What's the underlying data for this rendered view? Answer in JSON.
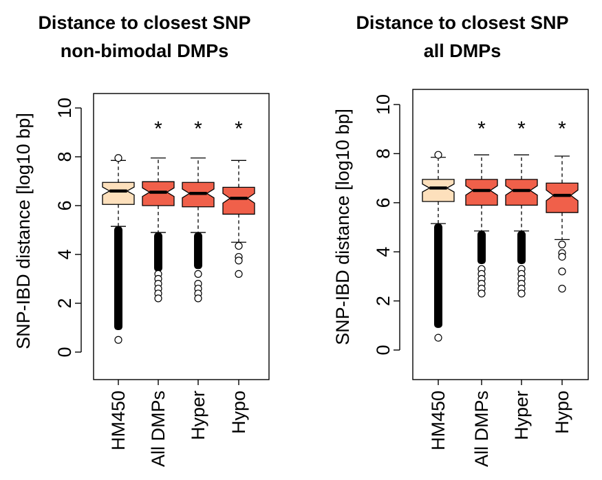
{
  "chart_data": [
    {
      "type": "box",
      "title": [
        "Distance to closest SNP",
        "non-bimodal DMPs"
      ],
      "xlabel": "",
      "ylabel": "SNP-IBD distance [log10 bp]",
      "ylim": [
        0,
        10
      ],
      "yticks": [
        0,
        2,
        4,
        6,
        8,
        10
      ],
      "categories": [
        "HM450",
        "All DMPs",
        "Hyper",
        "Hypo"
      ],
      "significance": [
        "",
        "*",
        "*",
        "*"
      ],
      "colors": [
        "#fde0bc",
        "#f0604a",
        "#f0604a",
        "#f0604a"
      ],
      "boxes": [
        {
          "name": "HM450",
          "whisker_low": 5.15,
          "q1": 6.05,
          "median": 6.6,
          "q3": 6.95,
          "whisker_high": 7.85,
          "outliers_high": [
            7.95
          ],
          "outlier_band": [
            0.9,
            5.15
          ],
          "outliers_low": [
            0.5
          ]
        },
        {
          "name": "All DMPs",
          "whisker_low": 4.9,
          "q1": 6.0,
          "median": 6.55,
          "q3": 6.98,
          "whisker_high": 7.95,
          "outliers_high": [],
          "outlier_band": [
            3.3,
            4.9
          ],
          "outliers_low": [
            3.2,
            3.0,
            2.8,
            2.6,
            2.4,
            2.2
          ]
        },
        {
          "name": "Hyper",
          "whisker_low": 4.9,
          "q1": 5.95,
          "median": 6.5,
          "q3": 6.95,
          "whisker_high": 7.95,
          "outliers_high": [],
          "outlier_band": [
            3.4,
            4.9
          ],
          "outliers_low": [
            3.2,
            2.8,
            2.6,
            2.4,
            2.2
          ]
        },
        {
          "name": "Hypo",
          "whisker_low": 4.5,
          "q1": 5.65,
          "median": 6.3,
          "q3": 6.75,
          "whisker_high": 7.85,
          "outliers_high": [],
          "outlier_band": [],
          "outliers_low": [
            4.35,
            3.9,
            3.75,
            3.2
          ]
        }
      ]
    },
    {
      "type": "box",
      "title": [
        "Distance to closest SNP",
        "all DMPs"
      ],
      "xlabel": "",
      "ylabel": "SNP-IBD distance [log10 bp]",
      "ylim": [
        0,
        10
      ],
      "yticks": [
        0,
        2,
        4,
        6,
        8,
        10
      ],
      "categories": [
        "HM450",
        "All DMPs",
        "Hyper",
        "Hypo"
      ],
      "significance": [
        "",
        "*",
        "*",
        "*"
      ],
      "colors": [
        "#fde0bc",
        "#f0604a",
        "#f0604a",
        "#f0604a"
      ],
      "boxes": [
        {
          "name": "HM450",
          "whisker_low": 5.15,
          "q1": 6.05,
          "median": 6.6,
          "q3": 6.95,
          "whisker_high": 7.85,
          "outliers_high": [
            7.95
          ],
          "outlier_band": [
            0.9,
            5.15
          ],
          "outliers_low": [
            0.5
          ]
        },
        {
          "name": "All DMPs",
          "whisker_low": 4.85,
          "q1": 5.9,
          "median": 6.5,
          "q3": 6.95,
          "whisker_high": 7.95,
          "outliers_high": [],
          "outlier_band": [
            3.5,
            4.85
          ],
          "outliers_low": [
            3.3,
            3.1,
            2.9,
            2.7,
            2.5,
            2.3
          ]
        },
        {
          "name": "Hyper",
          "whisker_low": 4.85,
          "q1": 5.9,
          "median": 6.5,
          "q3": 6.95,
          "whisker_high": 7.95,
          "outliers_high": [],
          "outlier_band": [
            3.5,
            4.85
          ],
          "outliers_low": [
            3.3,
            3.1,
            2.9,
            2.7,
            2.5,
            2.3
          ]
        },
        {
          "name": "Hypo",
          "whisker_low": 4.5,
          "q1": 5.6,
          "median": 6.3,
          "q3": 6.8,
          "whisker_high": 7.9,
          "outliers_high": [],
          "outlier_band": [],
          "outliers_low": [
            4.3,
            3.95,
            3.8,
            3.2,
            2.5
          ]
        }
      ]
    }
  ]
}
